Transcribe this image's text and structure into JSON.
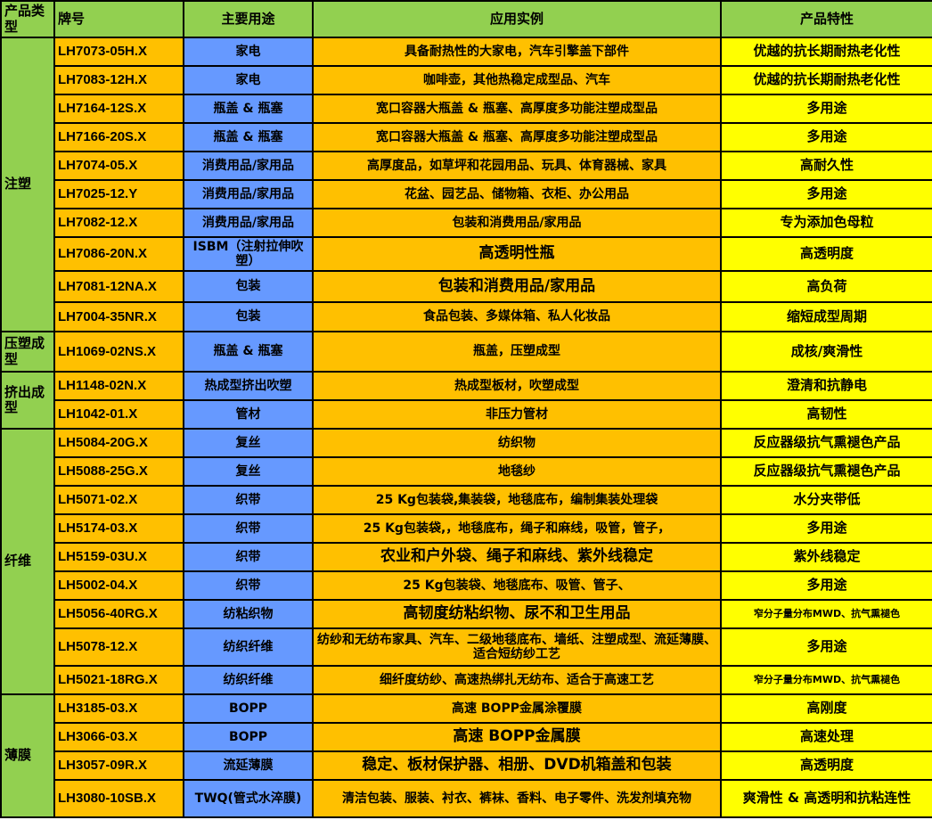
{
  "colors": {
    "header": "#92d050",
    "category": "#92d050",
    "brand": "#ffc000",
    "use": "#6699ff",
    "application": "#ffc000",
    "feature": "#ffff00"
  },
  "header": {
    "category": "产品类型",
    "brand": "牌号",
    "use": "主要用途",
    "application": "应用实例",
    "feature": "产品特性"
  },
  "groups": [
    {
      "name": "注塑",
      "rows": [
        {
          "brand": "LH7073-05H.X",
          "use": "家电",
          "application": "具备耐热性的大家电，汽车引擎盖下部件",
          "feature": "优越的抗长期耐热老化性"
        },
        {
          "brand": "LH7083-12H.X",
          "use": "家电",
          "application": "咖啡壶，其他热稳定成型品、汽车",
          "feature": "优越的抗长期耐热老化性"
        },
        {
          "brand": "LH7164-12S.X",
          "use": "瓶盖 & 瓶塞",
          "application": "宽口容器大瓶盖 & 瓶塞、高厚度多功能注塑成型品",
          "feature": "多用途"
        },
        {
          "brand": "LH7166-20S.X",
          "use": "瓶盖 & 瓶塞",
          "application": "宽口容器大瓶盖 & 瓶塞、高厚度多功能注塑成型品",
          "feature": "多用途"
        },
        {
          "brand": "LH7074-05.X",
          "use": "消费用品/家用品",
          "application": "高厚度品，如草坪和花园用品、玩具、体育器械、家具",
          "feature": "高耐久性"
        },
        {
          "brand": "LH7025-12.Y",
          "use": "消费用品/家用品",
          "application": "花盆、园艺品、储物箱、衣柜、办公用品",
          "feature": "多用途"
        },
        {
          "brand": "LH7082-12.X",
          "use": "消费用品/家用品",
          "application": "包装和消费用品/家用品",
          "feature": "专为添加色母粒"
        },
        {
          "brand": "LH7086-20N.X",
          "use": "ISBM（注射拉伸吹塑）",
          "application": "高透明性瓶",
          "feature": "高透明度"
        },
        {
          "brand": "LH7081-12NA.X",
          "use": "包装",
          "application": "包装和消费用品/家用品",
          "feature": "高负荷"
        },
        {
          "brand": "LH7004-35NR.X",
          "use": "包装",
          "application": "食品包装、多媒体箱、私人化妆品",
          "feature": "缩短成型周期"
        }
      ]
    },
    {
      "name": "压塑成型",
      "rows": [
        {
          "brand": "LH1069-02NS.X",
          "use": "瓶盖 & 瓶塞",
          "application": "瓶盖，压塑成型",
          "feature": "成核/爽滑性"
        }
      ]
    },
    {
      "name": "挤出成型",
      "rows": [
        {
          "brand": "LH1148-02N.X",
          "use": "热成型挤出吹塑",
          "application": "热成型板材，吹塑成型",
          "feature": "澄清和抗静电"
        },
        {
          "brand": "LH1042-01.X",
          "use": "管材",
          "application": "非压力管材",
          "feature": "高韧性"
        }
      ]
    },
    {
      "name": "纤维",
      "rows": [
        {
          "brand": "LH5084-20G.X",
          "use": "复丝",
          "application": "纺织物",
          "feature": "反应器级抗气熏褪色产品"
        },
        {
          "brand": "LH5088-25G.X",
          "use": "复丝",
          "application": "地毯纱",
          "feature": "反应器级抗气熏褪色产品"
        },
        {
          "brand": "LH5071-02.X",
          "use": "织带",
          "application": "25 Kg包装袋,集装袋，地毯底布，编制集装处理袋",
          "feature": "水分夹带低"
        },
        {
          "brand": "LH5174-03.X",
          "use": "织带",
          "application": "25 Kg包装袋,，地毯底布，绳子和麻线，吸管，管子，",
          "feature": "多用途"
        },
        {
          "brand": "LH5159-03U.X",
          "use": "织带",
          "application": "农业和户外袋、绳子和麻线、紫外线稳定",
          "feature": "紫外线稳定"
        },
        {
          "brand": "LH5002-04.X",
          "use": "织带",
          "application": "25 Kg包装袋、地毯底布、吸管、管子、",
          "feature": "多用途"
        },
        {
          "brand": "LH5056-40RG.X",
          "use": "纺粘织物",
          "application": "高韧度纺粘织物、尿不和卫生用品",
          "feature": "窄分子量分布MWD、抗气熏褪色"
        },
        {
          "brand": "LH5078-12.X",
          "use": "纺织纤维",
          "application": "纺纱和无纺布家具、汽车、二级地毯底布、墙纸、注塑成型、流延薄膜、适合短纺纱工艺",
          "feature": "多用途"
        },
        {
          "brand": "LH5021-18RG.X",
          "use": "纺织纤维",
          "application": "细纤度纺纱、高速热绑扎无纺布、适合于高速工艺",
          "feature": "窄分子量分布MWD、抗气熏褪色"
        }
      ]
    },
    {
      "name": "薄膜",
      "rows": [
        {
          "brand": "LH3185-03.X",
          "use": "BOPP",
          "application": "高速 BOPP金属涂覆膜",
          "feature": "高刚度"
        },
        {
          "brand": "LH3066-03.X",
          "use": "BOPP",
          "application": "高速 BOPP金属膜",
          "feature": "高速处理"
        },
        {
          "brand": "LH3057-09R.X",
          "use": "流延薄膜",
          "application": "稳定、板材保护器、相册、DVD机箱盖和包装",
          "feature": "高透明度"
        },
        {
          "brand": "LH3080-10SB.X",
          "use": "TWQ(管式水淬膜)",
          "application": "清洁包装、服装、衬衣、裤袜、香料、电子零件、洗发剂填充物",
          "feature": "爽滑性 & 高透明和抗粘连性"
        }
      ]
    }
  ]
}
